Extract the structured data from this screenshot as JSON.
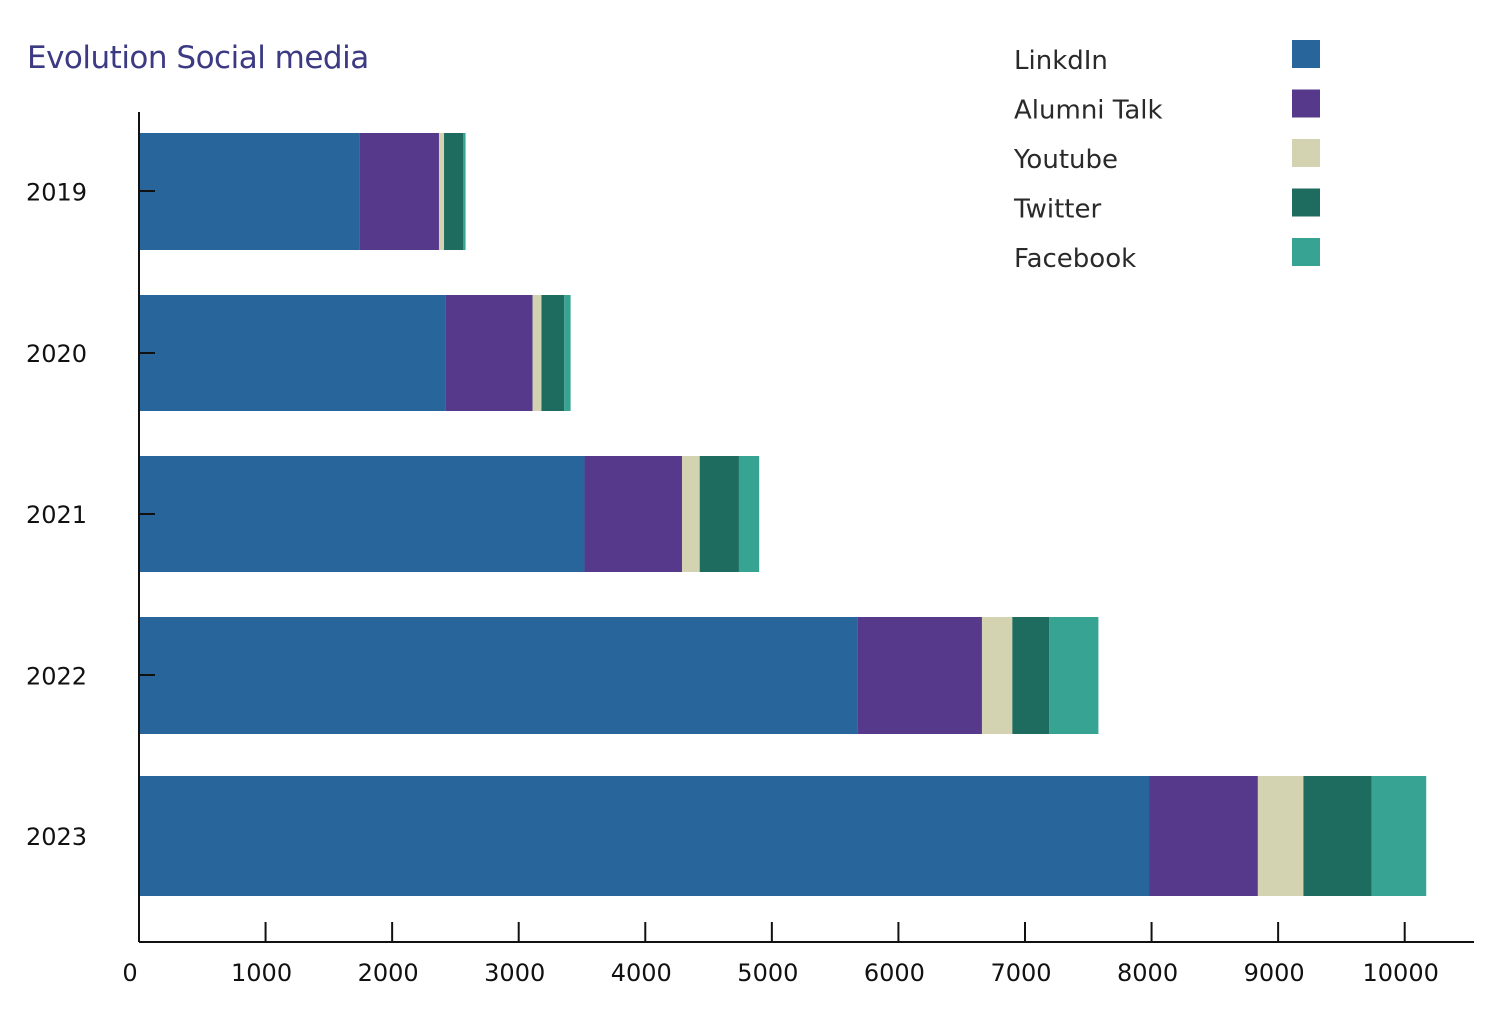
{
  "chart_data": {
    "type": "bar",
    "orientation": "horizontal",
    "stacked": true,
    "title": "Evolution Social media",
    "xlabel": "",
    "ylabel": "",
    "categories": [
      "2019",
      "2020",
      "2021",
      "2022",
      "2023"
    ],
    "xlim": [
      0,
      10600
    ],
    "xticks": [
      0,
      1000,
      2000,
      3000,
      4000,
      5000,
      6000,
      7000,
      8000,
      9000,
      10000
    ],
    "series": [
      {
        "name": "LinkdIn",
        "color": "#27659b",
        "values": [
          1740,
          2420,
          3520,
          5680,
          7980
        ]
      },
      {
        "name": "Alumni Talk",
        "color": "#56398b",
        "values": [
          630,
          690,
          770,
          980,
          860
        ]
      },
      {
        "name": "Youtube",
        "color": "#d3d3b1",
        "values": [
          40,
          70,
          140,
          240,
          360
        ]
      },
      {
        "name": "Twitter",
        "color": "#1e6b5f",
        "values": [
          150,
          180,
          310,
          290,
          540
        ]
      },
      {
        "name": "Facebook",
        "color": "#37a393",
        "values": [
          20,
          50,
          160,
          390,
          430
        ]
      }
    ],
    "legend_position": "top-right",
    "grid": false
  }
}
